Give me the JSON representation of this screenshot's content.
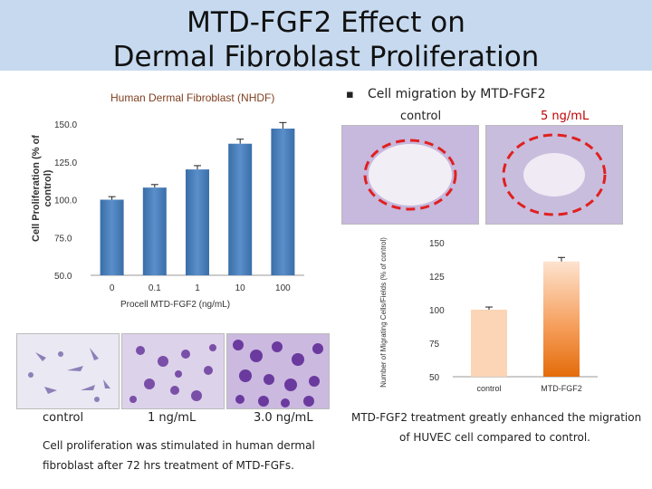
{
  "title_line1": "MTD-FGF2 Effect on",
  "title_line2": "Dermal Fibroblast Proliferation",
  "bullet": "▪",
  "migration_heading": "Cell migration by MTD-FGF2",
  "migration_labels": {
    "control": "control",
    "treated": "5 ng/mL"
  },
  "photo_labels": {
    "a": "control",
    "b": "1 ng/mL",
    "c": "3.0 ng/mL"
  },
  "caption_left_1": "Cell proliferation was stimulated in human dermal",
  "caption_left_2": "fibroblast after 72 hrs treatment of MTD-FGFs.",
  "caption_right_1": "MTD-FGF2 treatment greatly enhanced the migration",
  "caption_right_2": "of HUVEC cell compared to control.",
  "colors": {
    "title_band": "#c6d9ef",
    "bar_blue": "#4f81bd",
    "bar_orange": "#e46c0a",
    "bar_peach": "#fbd5b5",
    "ring": "#e02020"
  },
  "chart_data": [
    {
      "type": "bar",
      "title": "Human Dermal Fibroblast (NHDF)",
      "xlabel": "Procell MTD-FGF2 (ng/mL)",
      "ylabel": "Cell Proliferation (% of control)",
      "categories": [
        "0",
        "0.1",
        "1",
        "10",
        "100"
      ],
      "values": [
        100,
        108,
        120,
        137,
        147
      ],
      "errors": [
        2,
        2,
        2.5,
        3,
        4
      ],
      "ylim": [
        50,
        150
      ],
      "yticks": [
        "50.0",
        "75.0",
        "100.0",
        "125.0",
        "150.0"
      ],
      "grid": false
    },
    {
      "type": "bar",
      "title": "",
      "xlabel": "",
      "ylabel": "Number of Migrating Cells/Fields (% of control)",
      "categories": [
        "control",
        "MTD-FGF2"
      ],
      "values": [
        100,
        136
      ],
      "errors": [
        2,
        3
      ],
      "ylim": [
        50,
        150
      ],
      "yticks": [
        "50",
        "75",
        "100",
        "125",
        "150"
      ],
      "grid": false
    }
  ]
}
